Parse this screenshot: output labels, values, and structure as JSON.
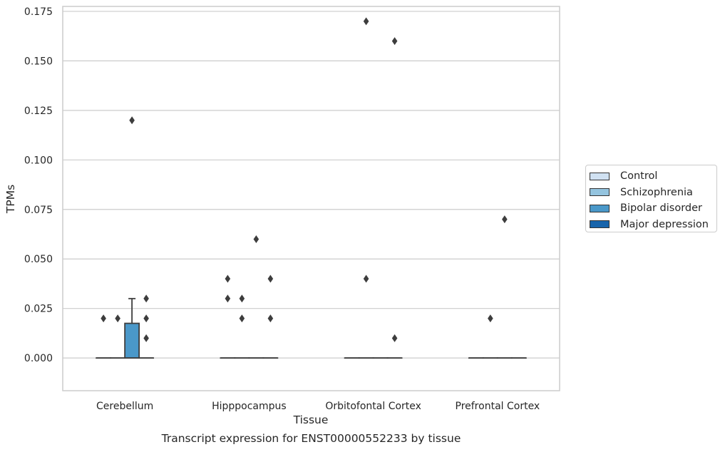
{
  "caption": "Transcript expression for ENST00000552233 by tissue",
  "chart_data": {
    "type": "box",
    "xlabel": "Tissue",
    "ylabel": "TPMs",
    "ylim": [
      -0.0165,
      0.1775
    ],
    "yticks": [
      "0.000",
      "0.025",
      "0.050",
      "0.075",
      "0.100",
      "0.125",
      "0.150",
      "0.175"
    ],
    "ytick_values": [
      0,
      0.025,
      0.05,
      0.075,
      0.1,
      0.125,
      0.15,
      0.175
    ],
    "grid": true,
    "legend_position": "right",
    "categories": [
      "Cerebellum",
      "Hipppocampus",
      "Orbitofontal Cortex",
      "Prefrontal Cortex"
    ],
    "series": [
      {
        "name": "Control",
        "color": "#d0e1f2",
        "boxes": [
          {
            "category": 0,
            "q1": 0,
            "median": 0,
            "q3": 0,
            "whisker_low": 0,
            "whisker_high": 0,
            "outliers": [
              0.02
            ]
          },
          {
            "category": 1,
            "q1": 0,
            "median": 0,
            "q3": 0,
            "whisker_low": 0,
            "whisker_high": 0,
            "outliers": [
              0.03,
              0.04
            ]
          },
          {
            "category": 2,
            "q1": 0,
            "median": 0,
            "q3": 0,
            "whisker_low": 0,
            "whisker_high": 0,
            "outliers": []
          },
          {
            "category": 3,
            "q1": 0,
            "median": 0,
            "q3": 0,
            "whisker_low": 0,
            "whisker_high": 0,
            "outliers": []
          }
        ]
      },
      {
        "name": "Schizophrenia",
        "color": "#94c4df",
        "boxes": [
          {
            "category": 0,
            "q1": 0,
            "median": 0,
            "q3": 0,
            "whisker_low": 0,
            "whisker_high": 0,
            "outliers": [
              0.02
            ]
          },
          {
            "category": 1,
            "q1": 0,
            "median": 0,
            "q3": 0,
            "whisker_low": 0,
            "whisker_high": 0,
            "outliers": [
              0.02,
              0.03
            ]
          },
          {
            "category": 2,
            "q1": 0,
            "median": 0,
            "q3": 0,
            "whisker_low": 0,
            "whisker_high": 0,
            "outliers": [
              0.04,
              0.17
            ]
          },
          {
            "category": 3,
            "q1": 0,
            "median": 0,
            "q3": 0,
            "whisker_low": 0,
            "whisker_high": 0,
            "outliers": [
              0.02
            ]
          }
        ]
      },
      {
        "name": "Bipolar disorder",
        "color": "#4a98c9",
        "boxes": [
          {
            "category": 0,
            "q1": 0,
            "median": 0,
            "q3": 0.0175,
            "whisker_low": 0,
            "whisker_high": 0.03,
            "outliers": [
              0.12
            ]
          },
          {
            "category": 1,
            "q1": 0,
            "median": 0,
            "q3": 0,
            "whisker_low": 0,
            "whisker_high": 0,
            "outliers": [
              0.06
            ]
          },
          {
            "category": 2,
            "q1": 0,
            "median": 0,
            "q3": 0,
            "whisker_low": 0,
            "whisker_high": 0,
            "outliers": []
          },
          {
            "category": 3,
            "q1": 0,
            "median": 0,
            "q3": 0,
            "whisker_low": 0,
            "whisker_high": 0,
            "outliers": [
              0.07
            ]
          }
        ]
      },
      {
        "name": "Major depression",
        "color": "#1764ab",
        "boxes": [
          {
            "category": 0,
            "q1": 0,
            "median": 0,
            "q3": 0,
            "whisker_low": 0,
            "whisker_high": 0,
            "outliers": [
              0.01,
              0.02,
              0.03
            ]
          },
          {
            "category": 1,
            "q1": 0,
            "median": 0,
            "q3": 0,
            "whisker_low": 0,
            "whisker_high": 0,
            "outliers": [
              0.02,
              0.04
            ]
          },
          {
            "category": 2,
            "q1": 0,
            "median": 0,
            "q3": 0,
            "whisker_low": 0,
            "whisker_high": 0,
            "outliers": [
              0.01,
              0.16
            ]
          },
          {
            "category": 3,
            "q1": 0,
            "median": 0,
            "q3": 0,
            "whisker_low": 0,
            "whisker_high": 0,
            "outliers": []
          }
        ]
      }
    ]
  }
}
